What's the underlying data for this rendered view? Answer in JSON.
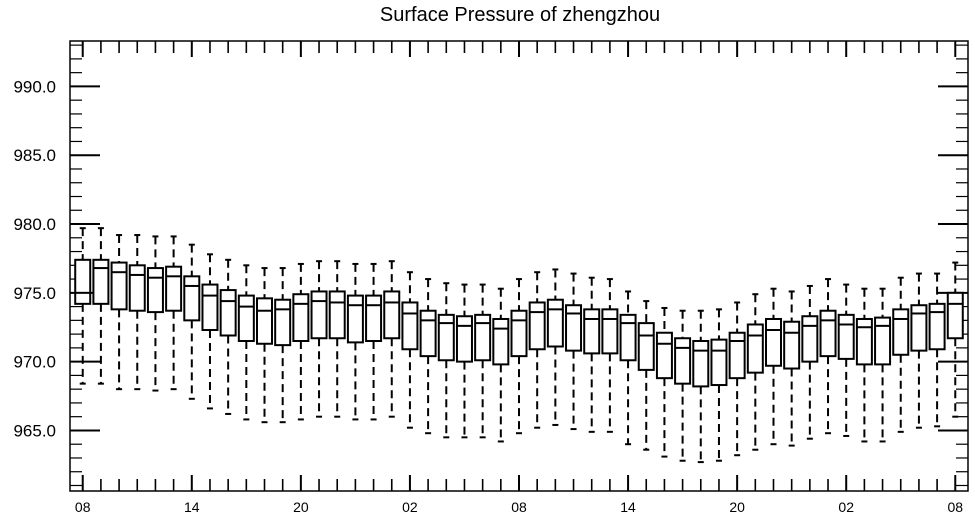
{
  "chart_data": {
    "type": "box",
    "title": "Surface Pressure of zhengzhou",
    "xlabel": "",
    "ylabel": "",
    "ylim": [
      960.6,
      993.3
    ],
    "y_ticks": [
      "990.0",
      "985.0",
      "980.0",
      "975.0",
      "970.0",
      "965.0"
    ],
    "y_tick_values": [
      990,
      985,
      980,
      975,
      970,
      965
    ],
    "x_tick_labels": [
      "08",
      "14",
      "20",
      "02",
      "08",
      "14",
      "20",
      "02",
      "08"
    ],
    "x_tick_positions": [
      0,
      6,
      12,
      18,
      24,
      30,
      36,
      42,
      48
    ],
    "x_range": [
      -0.7,
      48.7
    ],
    "grid": false,
    "boxes": [
      {
        "x": 0,
        "min": 968.4,
        "q1": 974.2,
        "median": 975.0,
        "q3": 977.4,
        "max": 979.7
      },
      {
        "x": 1,
        "min": 968.4,
        "q1": 974.2,
        "median": 976.8,
        "q3": 977.4,
        "max": 979.7
      },
      {
        "x": 2,
        "min": 968.0,
        "q1": 973.8,
        "median": 976.5,
        "q3": 977.2,
        "max": 979.2
      },
      {
        "x": 3,
        "min": 968.0,
        "q1": 973.7,
        "median": 976.3,
        "q3": 977.0,
        "max": 979.2
      },
      {
        "x": 4,
        "min": 967.9,
        "q1": 973.6,
        "median": 976.1,
        "q3": 976.8,
        "max": 979.1
      },
      {
        "x": 5,
        "min": 968.0,
        "q1": 973.7,
        "median": 976.2,
        "q3": 976.9,
        "max": 979.1
      },
      {
        "x": 6,
        "min": 967.3,
        "q1": 973.0,
        "median": 975.5,
        "q3": 976.2,
        "max": 978.5
      },
      {
        "x": 7,
        "min": 966.6,
        "q1": 972.3,
        "median": 974.8,
        "q3": 975.6,
        "max": 977.8
      },
      {
        "x": 8,
        "min": 966.2,
        "q1": 971.9,
        "median": 974.4,
        "q3": 975.2,
        "max": 977.4
      },
      {
        "x": 9,
        "min": 965.8,
        "q1": 971.5,
        "median": 974.0,
        "q3": 974.8,
        "max": 977.0
      },
      {
        "x": 10,
        "min": 965.6,
        "q1": 971.3,
        "median": 973.7,
        "q3": 974.6,
        "max": 976.8
      },
      {
        "x": 11,
        "min": 965.6,
        "q1": 971.2,
        "median": 973.8,
        "q3": 974.5,
        "max": 976.8
      },
      {
        "x": 12,
        "min": 965.8,
        "q1": 971.5,
        "median": 974.2,
        "q3": 974.9,
        "max": 977.1
      },
      {
        "x": 13,
        "min": 966.0,
        "q1": 971.7,
        "median": 974.4,
        "q3": 975.1,
        "max": 977.3
      },
      {
        "x": 14,
        "min": 966.0,
        "q1": 971.7,
        "median": 974.3,
        "q3": 975.1,
        "max": 977.3
      },
      {
        "x": 15,
        "min": 965.8,
        "q1": 971.4,
        "median": 974.1,
        "q3": 974.8,
        "max": 977.1
      },
      {
        "x": 16,
        "min": 965.8,
        "q1": 971.5,
        "median": 974.1,
        "q3": 974.8,
        "max": 977.1
      },
      {
        "x": 17,
        "min": 966.0,
        "q1": 971.7,
        "median": 974.3,
        "q3": 975.1,
        "max": 977.3
      },
      {
        "x": 18,
        "min": 965.2,
        "q1": 970.9,
        "median": 973.5,
        "q3": 974.3,
        "max": 976.5
      },
      {
        "x": 19,
        "min": 964.8,
        "q1": 970.4,
        "median": 973.0,
        "q3": 973.7,
        "max": 976.0
      },
      {
        "x": 20,
        "min": 964.5,
        "q1": 970.1,
        "median": 972.8,
        "q3": 973.4,
        "max": 975.7
      },
      {
        "x": 21,
        "min": 964.5,
        "q1": 970.0,
        "median": 972.6,
        "q3": 973.3,
        "max": 975.6
      },
      {
        "x": 22,
        "min": 964.5,
        "q1": 970.1,
        "median": 972.8,
        "q3": 973.4,
        "max": 975.6
      },
      {
        "x": 23,
        "min": 964.2,
        "q1": 969.8,
        "median": 972.4,
        "q3": 973.1,
        "max": 975.3
      },
      {
        "x": 24,
        "min": 964.8,
        "q1": 970.4,
        "median": 973.0,
        "q3": 973.7,
        "max": 976.0
      },
      {
        "x": 25,
        "min": 965.2,
        "q1": 970.9,
        "median": 973.6,
        "q3": 974.3,
        "max": 976.5
      },
      {
        "x": 26,
        "min": 965.4,
        "q1": 971.1,
        "median": 973.8,
        "q3": 974.5,
        "max": 976.7
      },
      {
        "x": 27,
        "min": 965.1,
        "q1": 970.8,
        "median": 973.5,
        "q3": 974.1,
        "max": 976.4
      },
      {
        "x": 28,
        "min": 964.9,
        "q1": 970.6,
        "median": 973.1,
        "q3": 973.8,
        "max": 976.1
      },
      {
        "x": 29,
        "min": 964.9,
        "q1": 970.6,
        "median": 973.1,
        "q3": 973.8,
        "max": 976.0
      },
      {
        "x": 30,
        "min": 964.0,
        "q1": 970.1,
        "median": 972.8,
        "q3": 973.4,
        "max": 975.1
      },
      {
        "x": 31,
        "min": 963.6,
        "q1": 969.4,
        "median": 971.9,
        "q3": 972.8,
        "max": 974.4
      },
      {
        "x": 32,
        "min": 963.1,
        "q1": 968.8,
        "median": 971.3,
        "q3": 972.1,
        "max": 973.9
      },
      {
        "x": 33,
        "min": 962.8,
        "q1": 968.4,
        "median": 971.0,
        "q3": 971.7,
        "max": 973.7
      },
      {
        "x": 34,
        "min": 962.7,
        "q1": 968.2,
        "median": 970.8,
        "q3": 971.5,
        "max": 973.7
      },
      {
        "x": 35,
        "min": 962.8,
        "q1": 968.3,
        "median": 970.8,
        "q3": 971.6,
        "max": 973.8
      },
      {
        "x": 36,
        "min": 963.2,
        "q1": 968.8,
        "median": 971.5,
        "q3": 972.1,
        "max": 974.3
      },
      {
        "x": 37,
        "min": 963.6,
        "q1": 969.2,
        "median": 971.9,
        "q3": 972.7,
        "max": 974.9
      },
      {
        "x": 38,
        "min": 964.0,
        "q1": 969.7,
        "median": 972.3,
        "q3": 973.1,
        "max": 975.3
      },
      {
        "x": 39,
        "min": 963.9,
        "q1": 969.5,
        "median": 972.1,
        "q3": 972.9,
        "max": 975.1
      },
      {
        "x": 40,
        "min": 964.4,
        "q1": 970.0,
        "median": 972.6,
        "q3": 973.3,
        "max": 975.5
      },
      {
        "x": 41,
        "min": 964.8,
        "q1": 970.4,
        "median": 973.0,
        "q3": 973.7,
        "max": 976.0
      },
      {
        "x": 42,
        "min": 964.6,
        "q1": 970.2,
        "median": 972.7,
        "q3": 973.4,
        "max": 975.6
      },
      {
        "x": 43,
        "min": 964.2,
        "q1": 969.8,
        "median": 972.5,
        "q3": 973.1,
        "max": 975.3
      },
      {
        "x": 44,
        "min": 964.2,
        "q1": 969.8,
        "median": 972.6,
        "q3": 973.2,
        "max": 975.3
      },
      {
        "x": 45,
        "min": 964.9,
        "q1": 970.5,
        "median": 973.1,
        "q3": 973.8,
        "max": 976.1
      },
      {
        "x": 46,
        "min": 965.2,
        "q1": 970.8,
        "median": 973.5,
        "q3": 974.1,
        "max": 976.4
      },
      {
        "x": 47,
        "min": 965.3,
        "q1": 970.9,
        "median": 973.6,
        "q3": 974.2,
        "max": 976.4
      },
      {
        "x": 48,
        "min": 966.0,
        "q1": 971.7,
        "median": 974.2,
        "q3": 975.0,
        "max": 977.2
      }
    ]
  },
  "colors": {
    "box_fill": "#ffffff",
    "box_stroke": "#000000",
    "axis": "#000000",
    "background": "#ffffff"
  }
}
